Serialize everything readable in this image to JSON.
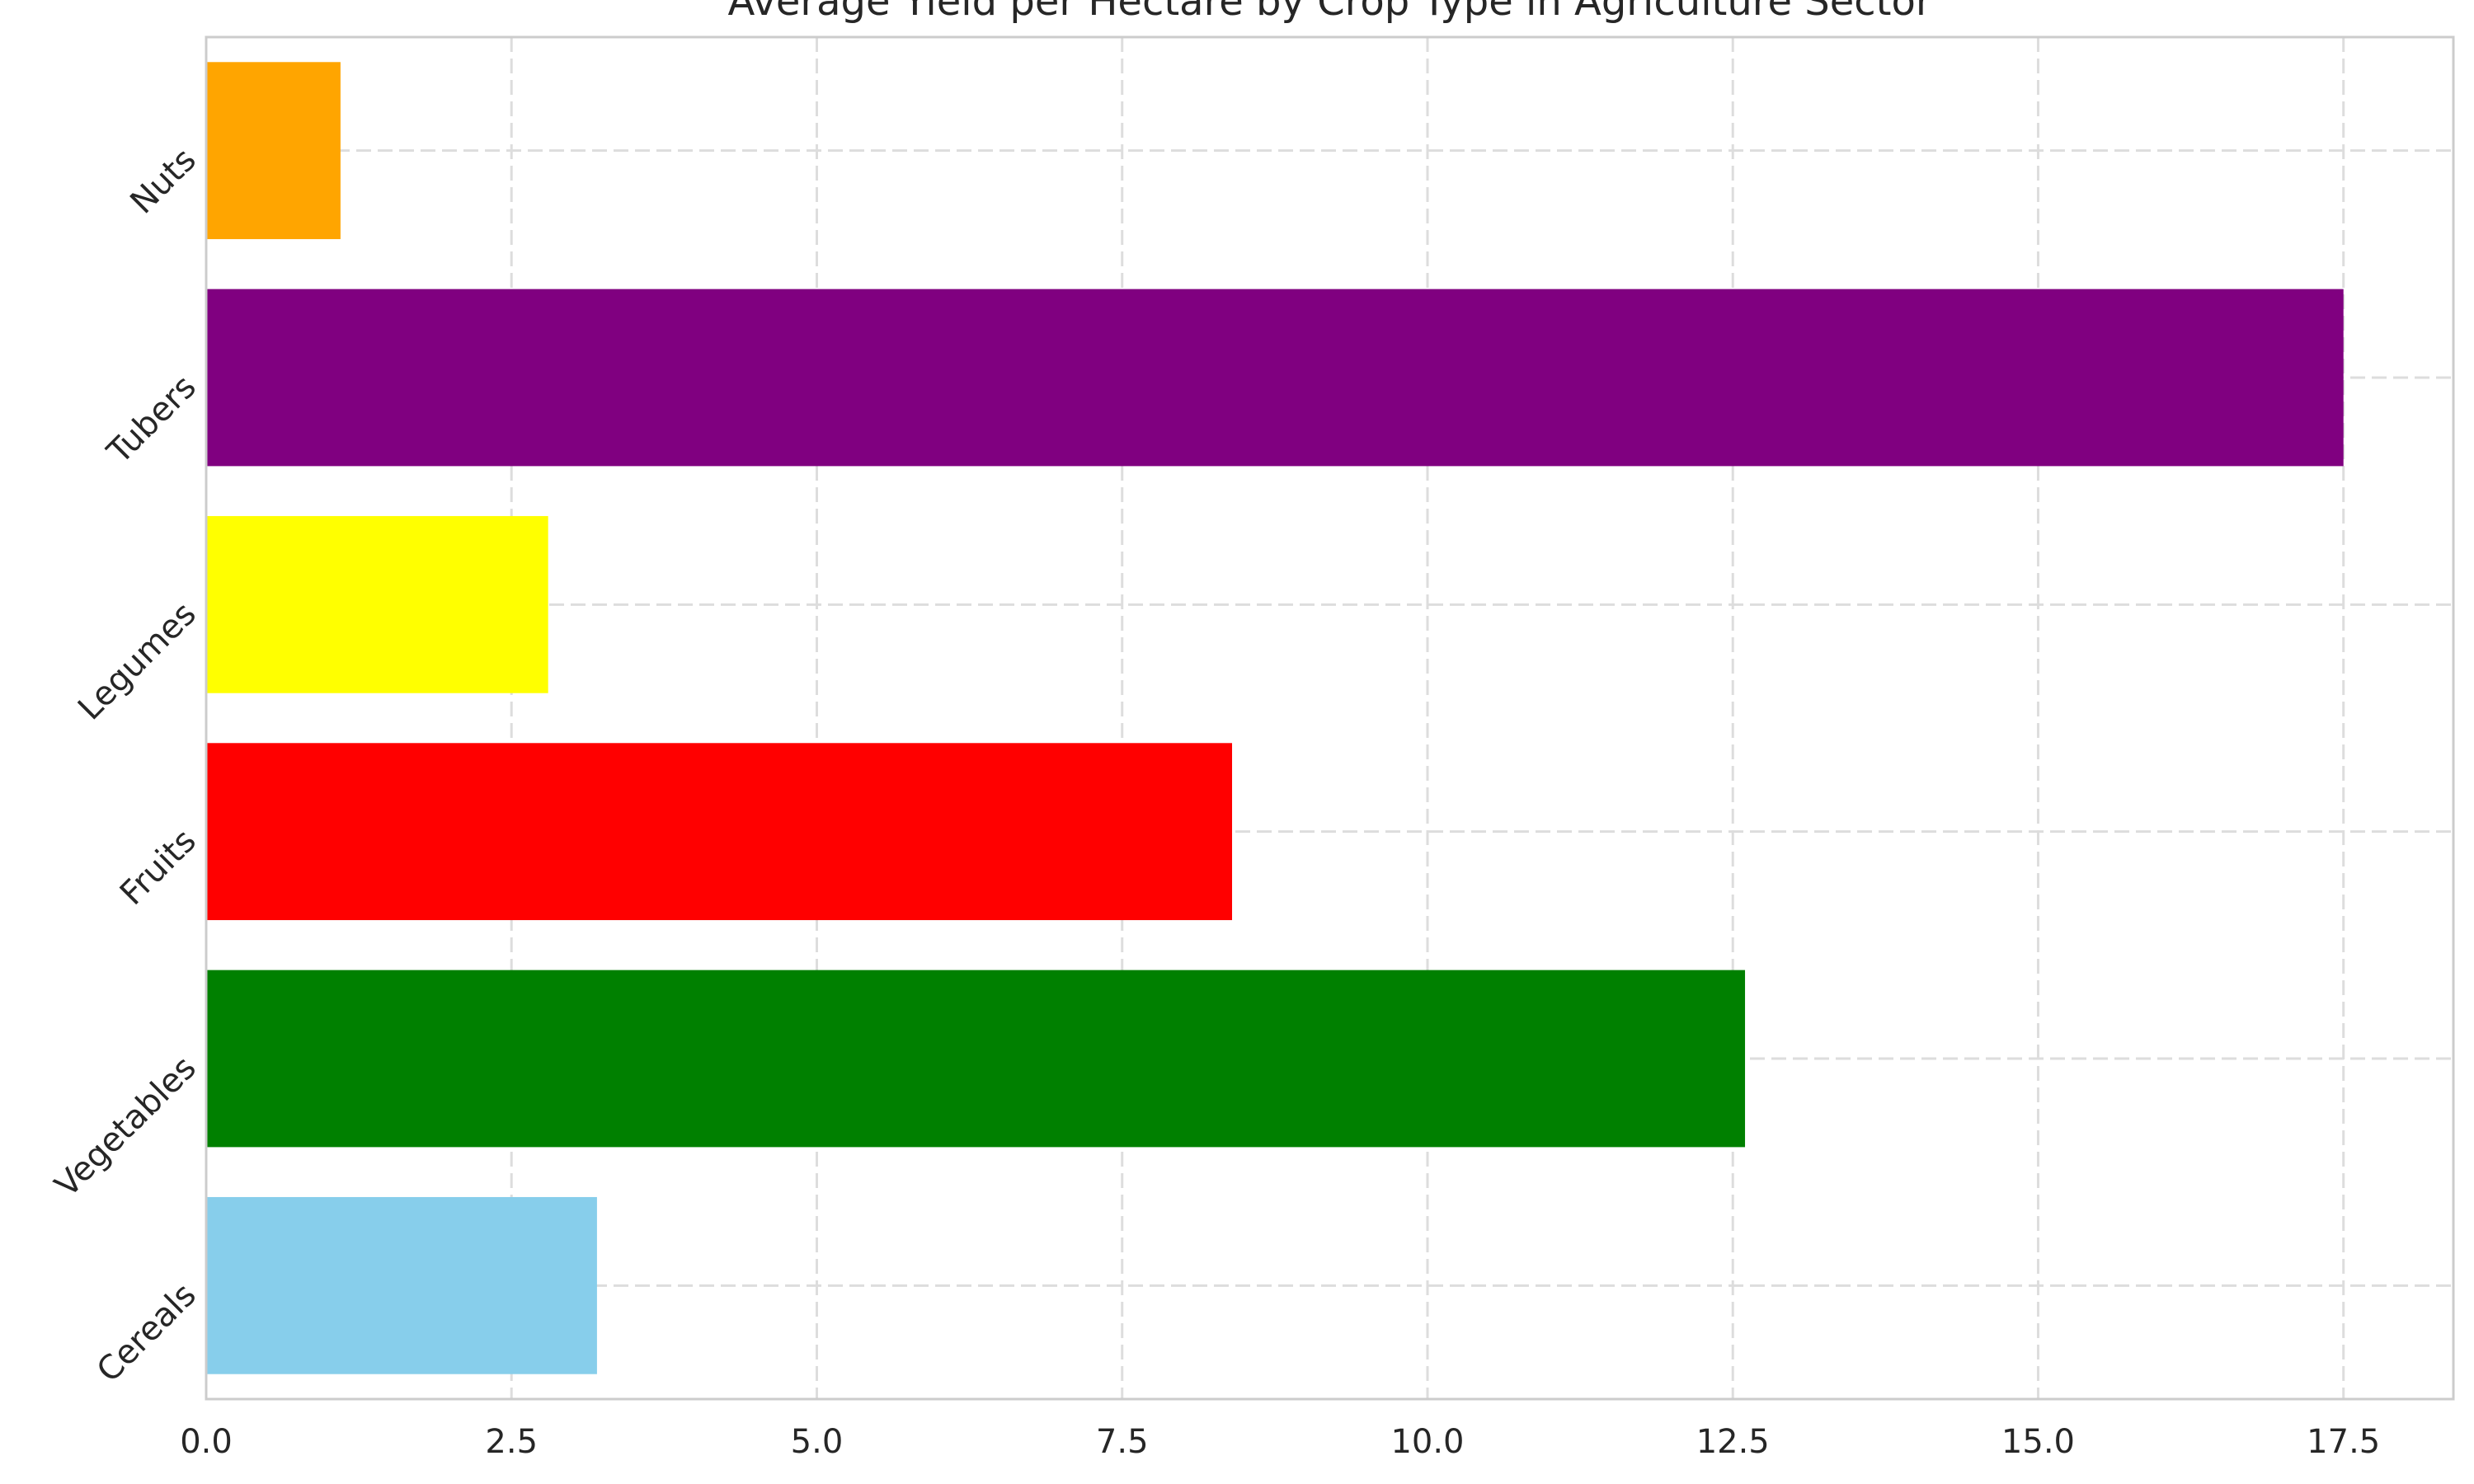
{
  "chart_data": {
    "type": "bar",
    "orientation": "horizontal",
    "title": "Average Yield per Hectare by Crop Type in Agriculture Sector",
    "xlabel": "",
    "ylabel": "",
    "categories": [
      "Cereals",
      "Vegetables",
      "Fruits",
      "Legumes",
      "Tubers",
      "Nuts"
    ],
    "values": [
      3.2,
      12.6,
      8.4,
      2.8,
      17.5,
      1.1
    ],
    "colors": [
      "#87ceeb",
      "#008000",
      "#ff0000",
      "#ffff00",
      "#800080",
      "#ffa500"
    ],
    "xlim": [
      0,
      18.4
    ],
    "xticks": [
      0.0,
      2.5,
      5.0,
      7.5,
      10.0,
      12.5,
      15.0,
      17.5
    ],
    "xtick_labels": [
      "0.0",
      "2.5",
      "5.0",
      "7.5",
      "10.0",
      "12.5",
      "15.0",
      "17.5"
    ],
    "grid": true,
    "legend": "none"
  }
}
